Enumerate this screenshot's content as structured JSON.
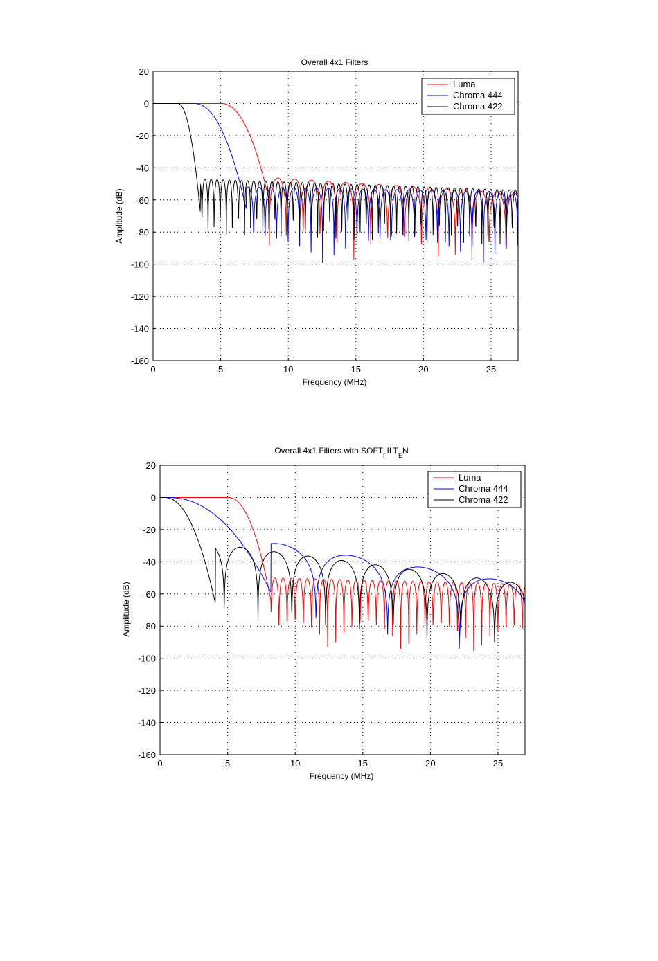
{
  "chart_data": [
    {
      "type": "line",
      "title": "Overall 4x1  Filters",
      "xlabel": "Frequency (MHz)",
      "ylabel": "Amplitude (dB)",
      "xlim": [
        0,
        27
      ],
      "ylim": [
        -160,
        20
      ],
      "xticks": [
        "0",
        "5",
        "10",
        "15",
        "20",
        "25"
      ],
      "yticks": [
        "20",
        "0",
        "-20",
        "-40",
        "-60",
        "-80",
        "-100",
        "-120",
        "-140",
        "-160"
      ],
      "grid": true,
      "legend_position": "top-right",
      "series": [
        {
          "name": "Luma",
          "color": "#ff0000",
          "passband_edge": 5.0,
          "stop_start": 8.6,
          "lobe_floor": -57,
          "lobe_peak": -46,
          "lobe_spacing": 1.25,
          "end_value": -56
        },
        {
          "name": "Chroma 444",
          "color": "#0000ff",
          "passband_edge": 3.0,
          "stop_start": 6.9,
          "lobe_floor": -62,
          "lobe_peak": -52,
          "lobe_spacing": 0.85,
          "end_value": -55
        },
        {
          "name": "Chroma 422",
          "color": "#000000",
          "passband_edge": 1.8,
          "stop_start": 3.5,
          "lobe_floor": -64,
          "lobe_peak": -47,
          "lobe_spacing": 0.45,
          "end_value": -54
        }
      ]
    },
    {
      "type": "line",
      "title_main": "Overall 4x1  Filters with SOFT",
      "title_sub1": "F",
      "title_mid": "ILT",
      "title_sub2": "E",
      "title_end": "N",
      "xlabel": "Frequency (MHz)",
      "ylabel": "Amplitude (dB)",
      "xlim": [
        0,
        27
      ],
      "ylim": [
        -160,
        20
      ],
      "xticks": [
        "0",
        "5",
        "10",
        "15",
        "20",
        "25"
      ],
      "yticks": [
        "20",
        "0",
        "-20",
        "-40",
        "-60",
        "-80",
        "-100",
        "-120",
        "-140",
        "-160"
      ],
      "grid": true,
      "legend_position": "top-right",
      "series": [
        {
          "name": "Luma",
          "color": "#ff0000",
          "passband_edge": 5.0,
          "stop_start": 8.2,
          "lobe_floor": -60,
          "lobe_peak": -50,
          "lobe_spacing": 0.6,
          "end_value": -54
        },
        {
          "name": "Chroma 444",
          "color": "#0000ff",
          "passband_edge": 0.5,
          "stop_start": 8.2,
          "lobe_floor": -55,
          "lobe_peak": -28,
          "lobe_spacing": 5.3,
          "end_value": -54
        },
        {
          "name": "Chroma 422",
          "color": "#000000",
          "passband_edge": 0.3,
          "stop_start": 4.1,
          "lobe_floor": -62,
          "lobe_peak": -29,
          "lobe_spacing": 2.5,
          "end_value": -54
        }
      ]
    }
  ]
}
